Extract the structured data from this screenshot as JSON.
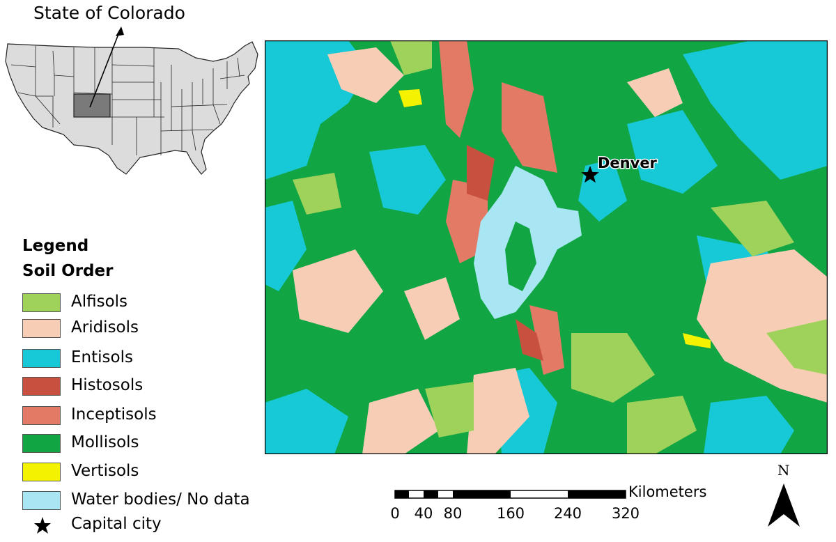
{
  "inset": {
    "title": "State of Colorado"
  },
  "map": {
    "city_label": "Denver",
    "colors": {
      "alfisols": "#9fd25a",
      "aridisols": "#f8cdb6",
      "entisols": "#17c9d6",
      "histosols": "#c8503e",
      "inceptisols": "#e27a66",
      "mollisols": "#12a544",
      "vertisols": "#f5f200",
      "water": "#a8e6f3"
    }
  },
  "legend": {
    "heading": "Legend",
    "subheading": "Soil Order",
    "items": [
      {
        "label": "Alfisols",
        "color": "#9fd25a"
      },
      {
        "label": "Aridisols",
        "color": "#f8cdb6"
      },
      {
        "label": "Entisols",
        "color": "#17c9d6"
      },
      {
        "label": "Histosols",
        "color": "#c8503e"
      },
      {
        "label": "Inceptisols",
        "color": "#e27a66"
      },
      {
        "label": "Mollisols",
        "color": "#12a544"
      },
      {
        "label": "Vertisols",
        "color": "#f5f200"
      },
      {
        "label": "Water bodies/ No data",
        "color": "#a8e6f3"
      }
    ],
    "capital_label": "Capital city"
  },
  "scale": {
    "unit": "Kilometers",
    "ticks": [
      "0",
      "40",
      "80",
      "160",
      "240",
      "320"
    ]
  },
  "north": {
    "letter": "N"
  }
}
